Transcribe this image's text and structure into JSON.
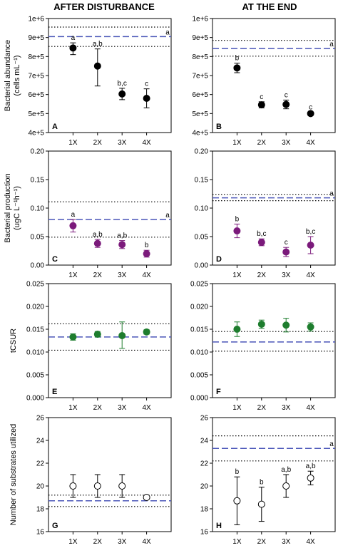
{
  "figure": {
    "col_titles": [
      "AFTER DISTURBANCE",
      "AT THE END"
    ],
    "row_ylabels": [
      [
        "Bacterial abundance",
        "(cells mL⁻¹)"
      ],
      [
        "Bacterial production",
        "(ugC L⁻¹h⁻¹)"
      ],
      [
        "tCSUR"
      ],
      [
        "Number of substrates utilized"
      ]
    ]
  },
  "chart_data": [
    {
      "panel": "A",
      "type": "scatter",
      "row": 0,
      "col": 0,
      "categories": [
        "1X",
        "2X",
        "3X",
        "4X"
      ],
      "values": [
        845000,
        750000,
        603000,
        580000
      ],
      "err_low": [
        810000,
        645000,
        573000,
        530000
      ],
      "err_high": [
        872000,
        840000,
        633000,
        630000
      ],
      "sig_labels": [
        "a",
        "a,b",
        "b,c",
        "c"
      ],
      "control_mean": 905000,
      "control_ci": [
        853000,
        955000
      ],
      "control_label": "a",
      "ylim": [
        400000,
        1000000
      ],
      "yticks": [
        400000,
        500000,
        600000,
        700000,
        800000,
        900000,
        1000000
      ],
      "ytick_labels": [
        "4e+5",
        "5e+5",
        "6e+5",
        "7e+5",
        "8e+5",
        "9e+5",
        "1e+6"
      ],
      "marker_fill": "#000000",
      "marker_stroke": "#000000"
    },
    {
      "panel": "B",
      "type": "scatter",
      "row": 0,
      "col": 1,
      "categories": [
        "1X",
        "2X",
        "3X",
        "4X"
      ],
      "values": [
        740000,
        546000,
        548000,
        500000
      ],
      "err_low": [
        715000,
        530000,
        525000,
        494000
      ],
      "err_high": [
        765000,
        562000,
        571000,
        506000
      ],
      "sig_labels": [
        "b",
        "c",
        "c",
        "c"
      ],
      "control_mean": 842000,
      "control_ci": [
        802000,
        885000
      ],
      "control_label": "a",
      "ylim": [
        400000,
        1000000
      ],
      "yticks": [
        400000,
        500000,
        600000,
        700000,
        800000,
        900000,
        1000000
      ],
      "ytick_labels": [
        "4e+5",
        "5e+5",
        "6e+5",
        "7e+5",
        "8e+5",
        "9e+5",
        "1e+6"
      ],
      "marker_fill": "#000000",
      "marker_stroke": "#000000"
    },
    {
      "panel": "C",
      "type": "scatter",
      "row": 1,
      "col": 0,
      "categories": [
        "1X",
        "2X",
        "3X",
        "4X"
      ],
      "values": [
        0.069,
        0.038,
        0.036,
        0.02
      ],
      "err_low": [
        0.058,
        0.031,
        0.029,
        0.014
      ],
      "err_high": [
        0.08,
        0.045,
        0.043,
        0.026
      ],
      "sig_labels": [
        "a",
        "a,b",
        "a,b",
        "b"
      ],
      "control_mean": 0.08,
      "control_ci": [
        0.049,
        0.111
      ],
      "control_label": "a",
      "ylim": [
        0,
        0.2
      ],
      "yticks": [
        0,
        0.05,
        0.1,
        0.15,
        0.2
      ],
      "ytick_labels": [
        "0.00",
        "0.05",
        "0.10",
        "0.15",
        "0.20"
      ],
      "marker_fill": "#7B1A7B",
      "marker_stroke": "#7B1A7B"
    },
    {
      "panel": "D",
      "type": "scatter",
      "row": 1,
      "col": 1,
      "categories": [
        "1X",
        "2X",
        "3X",
        "4X"
      ],
      "values": [
        0.06,
        0.04,
        0.023,
        0.035
      ],
      "err_low": [
        0.048,
        0.034,
        0.015,
        0.02
      ],
      "err_high": [
        0.072,
        0.046,
        0.031,
        0.05
      ],
      "sig_labels": [
        "b",
        "b,c",
        "c",
        "b,c"
      ],
      "control_mean": 0.118,
      "control_ci": [
        0.113,
        0.124
      ],
      "control_label": "a",
      "ylim": [
        0,
        0.2
      ],
      "yticks": [
        0,
        0.05,
        0.1,
        0.15,
        0.2
      ],
      "ytick_labels": [
        "0.00",
        "0.05",
        "0.10",
        "0.15",
        "0.20"
      ],
      "marker_fill": "#7B1A7B",
      "marker_stroke": "#7B1A7B"
    },
    {
      "panel": "E",
      "type": "scatter",
      "row": 2,
      "col": 0,
      "categories": [
        "1X",
        "2X",
        "3X",
        "4X"
      ],
      "values": [
        0.0133,
        0.0139,
        0.0136,
        0.0144
      ],
      "err_low": [
        0.0126,
        0.0133,
        0.0108,
        0.0139
      ],
      "err_high": [
        0.014,
        0.0145,
        0.0166,
        0.0149
      ],
      "sig_labels": [
        "",
        "",
        "",
        ""
      ],
      "control_mean": 0.0133,
      "control_ci": [
        0.0104,
        0.0162
      ],
      "control_label": "",
      "ylim": [
        0,
        0.025
      ],
      "yticks": [
        0,
        0.005,
        0.01,
        0.015,
        0.02,
        0.025
      ],
      "ytick_labels": [
        "0.000",
        "0.005",
        "0.010",
        "0.015",
        "0.020",
        "0.025"
      ],
      "marker_fill": "#1E7D2E",
      "marker_stroke": "#1E7D2E"
    },
    {
      "panel": "F",
      "type": "scatter",
      "row": 2,
      "col": 1,
      "categories": [
        "1X",
        "2X",
        "3X",
        "4X"
      ],
      "values": [
        0.015,
        0.0161,
        0.0159,
        0.0155
      ],
      "err_low": [
        0.0134,
        0.0152,
        0.0144,
        0.0146
      ],
      "err_high": [
        0.0166,
        0.017,
        0.0174,
        0.0164
      ],
      "sig_labels": [
        "",
        "",
        "",
        ""
      ],
      "control_mean": 0.0122,
      "control_ci": [
        0.0102,
        0.0145
      ],
      "control_label": "",
      "ylim": [
        0,
        0.025
      ],
      "yticks": [
        0,
        0.005,
        0.01,
        0.015,
        0.02,
        0.025
      ],
      "ytick_labels": [
        "0.000",
        "0.005",
        "0.010",
        "0.015",
        "0.020",
        "0.025"
      ],
      "marker_fill": "#1E7D2E",
      "marker_stroke": "#1E7D2E"
    },
    {
      "panel": "G",
      "type": "scatter",
      "row": 3,
      "col": 0,
      "categories": [
        "1X",
        "2X",
        "3X",
        "4X"
      ],
      "values": [
        20,
        20,
        20,
        19
      ],
      "err_low": [
        19,
        19,
        19,
        19
      ],
      "err_high": [
        21,
        21,
        21,
        19
      ],
      "sig_labels": [
        "",
        "",
        "",
        ""
      ],
      "control_mean": 18.7,
      "control_ci": [
        18.2,
        19.2
      ],
      "control_label": "",
      "ylim": [
        16,
        26
      ],
      "yticks": [
        16,
        18,
        20,
        22,
        24,
        26
      ],
      "ytick_labels": [
        "16",
        "18",
        "20",
        "22",
        "24",
        "26"
      ],
      "marker_fill": "#ffffff",
      "marker_stroke": "#000000"
    },
    {
      "panel": "H",
      "type": "scatter",
      "row": 3,
      "col": 1,
      "categories": [
        "1X",
        "2X",
        "3X",
        "4X"
      ],
      "values": [
        18.7,
        18.4,
        20.0,
        20.7
      ],
      "err_low": [
        16.6,
        16.9,
        19.0,
        20.1
      ],
      "err_high": [
        20.8,
        19.9,
        21.0,
        21.3
      ],
      "sig_labels": [
        "b",
        "b",
        "a,b",
        "a,b"
      ],
      "control_mean": 23.3,
      "control_ci": [
        22.2,
        24.4
      ],
      "control_label": "a",
      "ylim": [
        16,
        26
      ],
      "yticks": [
        16,
        18,
        20,
        22,
        24,
        26
      ],
      "ytick_labels": [
        "16",
        "18",
        "20",
        "22",
        "24",
        "26"
      ],
      "marker_fill": "#ffffff",
      "marker_stroke": "#000000"
    }
  ],
  "colors": {
    "control_line": "#4A55B8",
    "ci_line": "#000000",
    "axis": "#000000",
    "error_bar_default": "#000000"
  }
}
